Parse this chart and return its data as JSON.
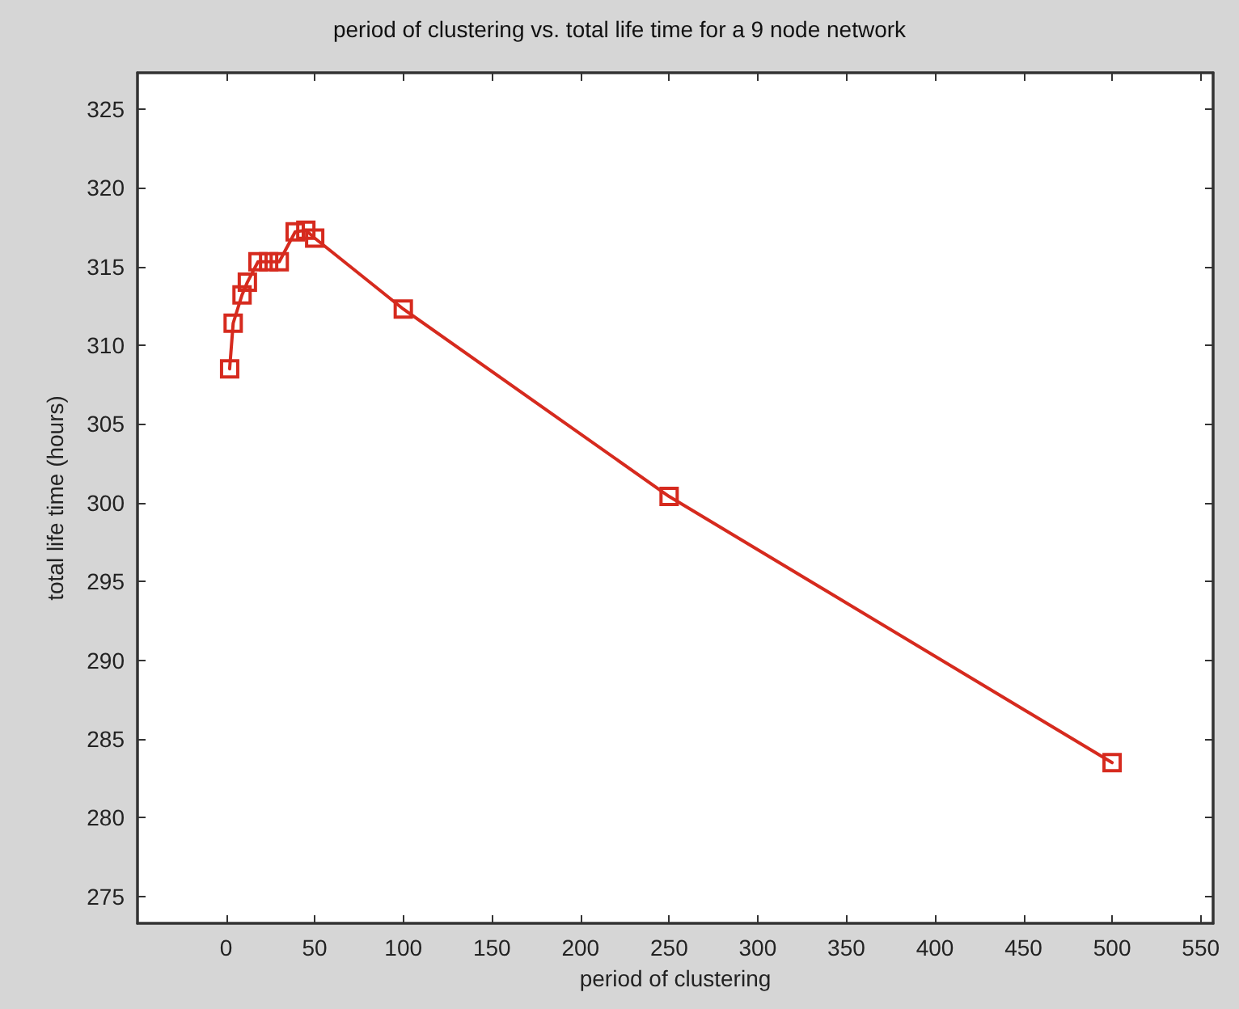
{
  "chart_data": {
    "type": "line",
    "title": "period of clustering vs. total life time for a 9 node network",
    "xlabel": "period of clustering",
    "ylabel": "total life time (hours)",
    "x": [
      2,
      4,
      9,
      12,
      18,
      24,
      30,
      39,
      45,
      50,
      100,
      250,
      500
    ],
    "series": [
      {
        "color": "#d62a1e",
        "values": [
          308.5,
          311.4,
          313.2,
          314.0,
          315.3,
          315.3,
          315.3,
          317.2,
          317.3,
          316.8,
          312.3,
          300.4,
          283.5
        ]
      }
    ],
    "xlim": [
      -50,
      557
    ],
    "xticks": [
      0,
      50,
      100,
      150,
      200,
      250,
      300,
      350,
      400,
      450,
      500,
      550
    ],
    "ylim": [
      273.3,
      327.3
    ],
    "yticks": [
      275,
      280,
      285,
      290,
      295,
      300,
      305,
      310,
      315,
      320,
      325
    ],
    "marker": "square",
    "line_style": "solid",
    "grid": false
  }
}
